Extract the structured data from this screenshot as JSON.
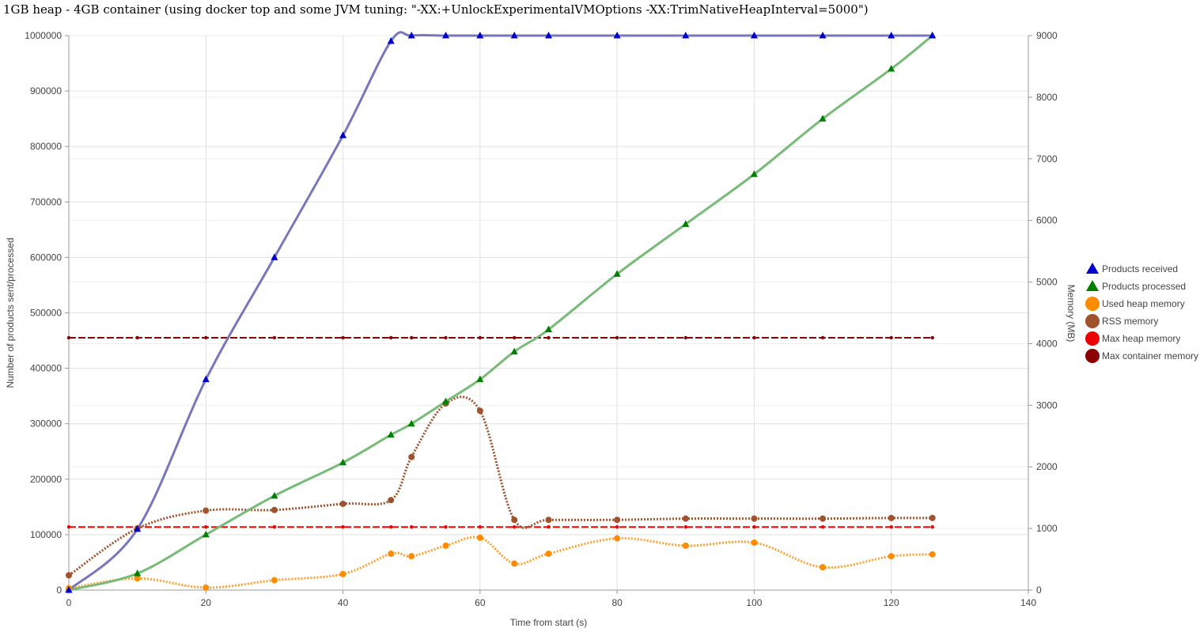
{
  "chart_data": {
    "type": "line",
    "title": "1GB heap - 4GB container (using docker top and some JVM tuning: \"-XX:+UnlockExperimentalVMOptions -XX:TrimNativeHeapInterval=5000\")",
    "xlabel": "Time from start (s)",
    "ylabel_left": "Number of products sent/processed",
    "ylabel_right": "Memory (MB)",
    "xlim": [
      0,
      140
    ],
    "ylim_left": [
      0,
      1000000
    ],
    "ylim_right": [
      0,
      9000
    ],
    "x_ticks": [
      "0",
      "20",
      "40",
      "60",
      "80",
      "100",
      "120",
      "140"
    ],
    "y_left_ticks": [
      "0",
      "100000",
      "200000",
      "300000",
      "400000",
      "500000",
      "600000",
      "700000",
      "800000",
      "900000",
      "1000000"
    ],
    "y_right_ticks": [
      "0",
      "1000",
      "2000",
      "3000",
      "4000",
      "5000",
      "6000",
      "7000",
      "8000",
      "9000"
    ],
    "grid": true,
    "legend_position": "right",
    "series": [
      {
        "name": "Products received",
        "axis": "left",
        "color": "#7777bb",
        "marker_color": "#0000cc",
        "marker": "triangle",
        "line_style": "solid",
        "points": [
          [
            0,
            0
          ],
          [
            10,
            110000
          ],
          [
            20,
            380000
          ],
          [
            30,
            600000
          ],
          [
            40,
            820000
          ],
          [
            47,
            990000
          ],
          [
            50,
            1000000
          ],
          [
            55,
            1000000
          ],
          [
            60,
            1000000
          ],
          [
            65,
            1000000
          ],
          [
            70,
            1000000
          ],
          [
            80,
            1000000
          ],
          [
            90,
            1000000
          ],
          [
            100,
            1000000
          ],
          [
            110,
            1000000
          ],
          [
            120,
            1000000
          ],
          [
            126,
            1000000
          ]
        ]
      },
      {
        "name": "Products processed",
        "axis": "left",
        "color": "#77bb77",
        "marker_color": "#008000",
        "marker": "triangle",
        "line_style": "solid",
        "points": [
          [
            0,
            0
          ],
          [
            10,
            30000
          ],
          [
            20,
            100000
          ],
          [
            30,
            170000
          ],
          [
            40,
            230000
          ],
          [
            47,
            280000
          ],
          [
            50,
            300000
          ],
          [
            55,
            340000
          ],
          [
            60,
            380000
          ],
          [
            65,
            430000
          ],
          [
            70,
            470000
          ],
          [
            80,
            570000
          ],
          [
            90,
            660000
          ],
          [
            100,
            750000
          ],
          [
            110,
            850000
          ],
          [
            120,
            940000
          ],
          [
            126,
            1000000
          ]
        ]
      },
      {
        "name": "Used heap memory",
        "axis": "right",
        "color": "#ffa030",
        "marker_color": "#ff8c00",
        "marker": "circle",
        "line_style": "dotted",
        "points": [
          [
            0,
            30
          ],
          [
            10,
            190
          ],
          [
            20,
            40
          ],
          [
            30,
            160
          ],
          [
            40,
            260
          ],
          [
            47,
            590
          ],
          [
            50,
            550
          ],
          [
            55,
            720
          ],
          [
            60,
            850
          ],
          [
            65,
            430
          ],
          [
            70,
            590
          ],
          [
            80,
            840
          ],
          [
            90,
            720
          ],
          [
            100,
            770
          ],
          [
            110,
            370
          ],
          [
            120,
            550
          ],
          [
            126,
            580
          ]
        ]
      },
      {
        "name": "RSS memory",
        "axis": "right",
        "color": "#a0522d",
        "marker_color": "#a0522d",
        "marker": "circle",
        "line_style": "dotted",
        "points": [
          [
            0,
            240
          ],
          [
            10,
            1000
          ],
          [
            20,
            1290
          ],
          [
            30,
            1300
          ],
          [
            40,
            1400
          ],
          [
            47,
            1460
          ],
          [
            50,
            2160
          ],
          [
            55,
            3030
          ],
          [
            60,
            2910
          ],
          [
            65,
            1140
          ],
          [
            70,
            1140
          ],
          [
            80,
            1140
          ],
          [
            90,
            1160
          ],
          [
            100,
            1160
          ],
          [
            110,
            1160
          ],
          [
            120,
            1170
          ],
          [
            126,
            1170
          ]
        ]
      },
      {
        "name": "Max heap memory",
        "axis": "right",
        "color": "#ff0000",
        "marker_color": "#ee0000",
        "marker": "circle",
        "line_style": "dashed",
        "points": [
          [
            0,
            1024
          ],
          [
            10,
            1024
          ],
          [
            20,
            1024
          ],
          [
            30,
            1024
          ],
          [
            40,
            1024
          ],
          [
            47,
            1024
          ],
          [
            50,
            1024
          ],
          [
            55,
            1024
          ],
          [
            60,
            1024
          ],
          [
            65,
            1024
          ],
          [
            70,
            1024
          ],
          [
            80,
            1024
          ],
          [
            90,
            1024
          ],
          [
            100,
            1024
          ],
          [
            110,
            1024
          ],
          [
            120,
            1024
          ],
          [
            126,
            1024
          ]
        ]
      },
      {
        "name": "Max container memory",
        "axis": "right",
        "color": "#8b0000",
        "marker_color": "#8b0000",
        "marker": "circle",
        "line_style": "dashed",
        "points": [
          [
            0,
            4096
          ],
          [
            10,
            4096
          ],
          [
            20,
            4096
          ],
          [
            30,
            4096
          ],
          [
            40,
            4096
          ],
          [
            47,
            4096
          ],
          [
            50,
            4096
          ],
          [
            55,
            4096
          ],
          [
            60,
            4096
          ],
          [
            65,
            4096
          ],
          [
            70,
            4096
          ],
          [
            80,
            4096
          ],
          [
            90,
            4096
          ],
          [
            100,
            4096
          ],
          [
            110,
            4096
          ],
          [
            120,
            4096
          ],
          [
            126,
            4096
          ]
        ]
      }
    ]
  }
}
